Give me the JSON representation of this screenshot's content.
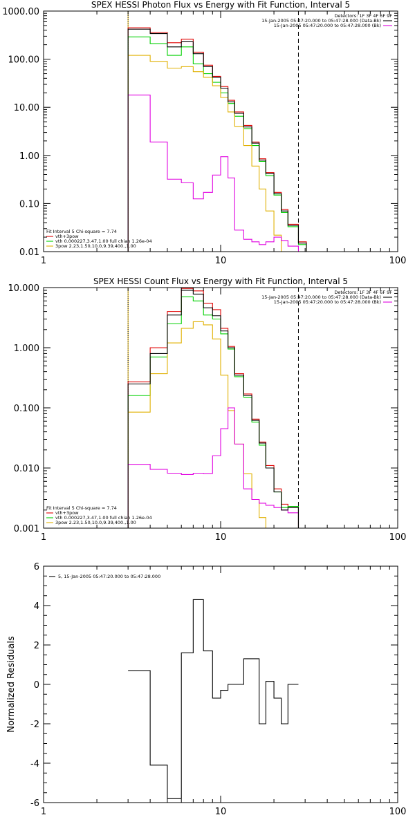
{
  "chart_data": [
    {
      "type": "line",
      "step": true,
      "title": "SPEX HESSI Photon Flux vs Energy with Fit Function, Interval 5",
      "x_scale": "log",
      "y_scale": "log",
      "xlim": [
        1,
        100
      ],
      "ylim": [
        0.01,
        1000
      ],
      "x_ticks": [
        1,
        10,
        100
      ],
      "x_tick_labels": [
        "1",
        "10",
        "100"
      ],
      "y_ticks": [
        0.01,
        0.1,
        1,
        10,
        100,
        1000
      ],
      "y_tick_labels": [
        "0.01",
        "0.10",
        "1.00",
        "10.00",
        "100.00",
        "1000.00"
      ],
      "vlines": [
        {
          "x": 3.0,
          "style": "dotted-orange"
        },
        {
          "x": 27.5,
          "style": "dashed"
        }
      ],
      "legend_top_right": [
        {
          "text": "Detectors: 1F 3F 4F 6F 9F",
          "color": "#000000",
          "line": false
        },
        {
          "text": "15-Jan-2005 05:47:20.000 to 05:47:28.000 (Data-Bk)",
          "color": "#000000",
          "line": true
        },
        {
          "text": "15-Jan-2005 05:47:20.000 to 05:47:28.000 (Bk)",
          "color": "#e000e0",
          "line": true
        }
      ],
      "legend_bottom_left": [
        {
          "text": "Fit Interval 5   Chi-square = 7.74",
          "color": "#000000",
          "line": false
        },
        {
          "text": "vth+3pow",
          "color": "#e00000",
          "line": true
        },
        {
          "text": "vth 0.000227,3.47,1.00   full chian 1.26e-04",
          "color": "#00d000",
          "line": true
        },
        {
          "text": "3pow 2.23,1.50,10.0,9.39,400.,1.00",
          "color": "#e0b000",
          "line": true
        }
      ],
      "bin_edges": [
        3.0,
        4.0,
        5.0,
        6.0,
        7.0,
        8.0,
        9.0,
        10.0,
        11.0,
        12.0,
        13.5,
        15.0,
        16.5,
        18.0,
        20.0,
        22.0,
        24.0,
        27.5,
        30.5
      ],
      "series": [
        {
          "name": "Data-Bk",
          "color": "#000000",
          "values": [
            420,
            340,
            180,
            230,
            130,
            70,
            42,
            25,
            13,
            7.5,
            3.9,
            1.8,
            0.8,
            0.42,
            0.16,
            0.07,
            0.035,
            0.015
          ]
        },
        {
          "name": "vth+3pow",
          "color": "#e00000",
          "values": [
            450,
            360,
            220,
            260,
            140,
            75,
            44,
            27,
            14,
            8,
            4.2,
            1.9,
            0.85,
            0.44,
            0.17,
            0.075,
            0.037,
            0.016
          ]
        },
        {
          "name": "vth",
          "color": "#00d000",
          "values": [
            290,
            210,
            120,
            180,
            80,
            50,
            33,
            20,
            12,
            6.5,
            3.6,
            1.6,
            0.75,
            0.38,
            0.15,
            0.065,
            0.033,
            0.014
          ]
        },
        {
          "name": "3pow",
          "color": "#e0b000",
          "values": [
            120,
            90,
            65,
            70,
            55,
            42,
            28,
            16,
            8,
            4,
            1.6,
            0.6,
            0.2,
            0.07,
            0.022,
            0.009,
            null,
            null
          ]
        },
        {
          "name": "Bk",
          "color": "#e000e0",
          "values": [
            18,
            1.9,
            0.32,
            0.27,
            0.125,
            0.17,
            0.39,
            0.94,
            0.34,
            0.028,
            0.018,
            0.016,
            0.014,
            0.016,
            0.02,
            0.017,
            0.013,
            null
          ]
        }
      ]
    },
    {
      "type": "line",
      "step": true,
      "title": "SPEX HESSI Count Flux vs Energy with Fit Function, Interval 5",
      "x_scale": "log",
      "y_scale": "log",
      "xlim": [
        1,
        100
      ],
      "ylim": [
        0.001,
        10
      ],
      "x_ticks": [
        1,
        10,
        100
      ],
      "x_tick_labels": [
        "1",
        "10",
        "100"
      ],
      "y_ticks": [
        0.001,
        0.01,
        0.1,
        1,
        10
      ],
      "y_tick_labels": [
        "0.001",
        "0.010",
        "0.100",
        "1.000",
        "10.000"
      ],
      "vlines": [
        {
          "x": 3.0,
          "style": "dotted-orange"
        },
        {
          "x": 27.5,
          "style": "dashed"
        }
      ],
      "legend_top_right": [
        {
          "text": "Detectors: 1F 3F 4F 6F 9F",
          "color": "#000000",
          "line": false
        },
        {
          "text": "15-Jan-2005 05:47:20.000 to 05:47:28.000 (Data-Bk)",
          "color": "#000000",
          "line": true
        },
        {
          "text": "15-Jan-2005 05:47:20.000 to 05:47:28.000 (Bk)",
          "color": "#e000e0",
          "line": true
        }
      ],
      "legend_bottom_left": [
        {
          "text": "Fit Interval 5   Chi-square = 7.74",
          "color": "#000000",
          "line": false
        },
        {
          "text": "vth+3pow",
          "color": "#e00000",
          "line": true
        },
        {
          "text": "vth 0.000227,3.47,1.00   full chian 1.26e-04",
          "color": "#00d000",
          "line": true
        },
        {
          "text": "3pow 2.23,1.50,10.0,9.39,400.,1.00",
          "color": "#e0b000",
          "line": true
        }
      ],
      "bin_edges": [
        3.0,
        4.0,
        5.0,
        6.0,
        7.0,
        8.0,
        9.0,
        10.0,
        11.0,
        12.0,
        13.5,
        15.0,
        16.5,
        18.0,
        20.0,
        22.0,
        24.0,
        27.5,
        30.5
      ],
      "series": [
        {
          "name": "Data-Bk",
          "color": "#000000",
          "values": [
            0.25,
            0.8,
            3.5,
            9.0,
            7.8,
            4.6,
            3.4,
            1.9,
            1.0,
            0.35,
            0.16,
            0.062,
            0.026,
            0.01,
            0.004,
            0.002,
            0.0022,
            null
          ]
        },
        {
          "name": "vth+3pow",
          "color": "#e00000",
          "values": [
            0.27,
            1.0,
            4.0,
            9.7,
            8.8,
            5.5,
            4.3,
            2.1,
            1.05,
            0.37,
            0.17,
            0.065,
            0.027,
            0.011,
            0.0045,
            0.0025,
            0.0023,
            null
          ]
        },
        {
          "name": "vth",
          "color": "#00d000",
          "values": [
            0.16,
            0.7,
            2.5,
            7.0,
            6.0,
            3.5,
            3.0,
            1.7,
            0.95,
            0.33,
            0.15,
            0.058,
            0.024,
            0.01,
            0.004,
            0.0022,
            0.0023,
            null
          ]
        },
        {
          "name": "3pow",
          "color": "#e0b000",
          "values": [
            0.085,
            0.37,
            1.2,
            2.1,
            2.7,
            2.4,
            1.4,
            0.35,
            0.09,
            0.025,
            0.008,
            0.003,
            0.0015,
            null,
            null,
            null,
            null,
            null
          ]
        },
        {
          "name": "Bk",
          "color": "#e000e0",
          "values": [
            0.0115,
            0.0095,
            0.0082,
            0.0078,
            0.0082,
            0.0081,
            0.016,
            0.045,
            0.1,
            0.025,
            0.0045,
            0.003,
            0.0026,
            0.0024,
            0.0022,
            0.002,
            0.0018,
            null
          ]
        }
      ]
    },
    {
      "type": "line",
      "step": true,
      "title": "",
      "x_scale": "log",
      "y_scale": "linear",
      "xlim": [
        1,
        100
      ],
      "ylim": [
        -6,
        6
      ],
      "ylabel": "Normalized Residuals",
      "x_ticks": [
        1,
        10,
        100
      ],
      "x_tick_labels": [
        "1",
        "10",
        "100"
      ],
      "y_ticks": [
        -6,
        -4,
        -2,
        0,
        2,
        4,
        6
      ],
      "y_tick_labels": [
        "-6",
        "-4",
        "-2",
        "0",
        "2",
        "4",
        "6"
      ],
      "legend_top_left": [
        {
          "text": "5, 15-Jan-2005 05:47:20.000 to 05:47:28.000",
          "color": "#000000",
          "line": true
        }
      ],
      "bin_edges": [
        3.0,
        4.0,
        5.0,
        6.0,
        7.0,
        8.0,
        9.0,
        10.0,
        11.0,
        12.0,
        13.5,
        15.0,
        16.5,
        18.0,
        20.0,
        22.0,
        24.0,
        27.5
      ],
      "series": [
        {
          "name": "",
          "color": "#000000",
          "values": [
            0.7,
            -4.1,
            -5.8,
            1.6,
            4.3,
            1.7,
            -0.7,
            -0.3,
            0.0,
            0.0,
            1.3,
            1.3,
            -2.0,
            0.15,
            -0.7,
            -2.0,
            0.0
          ]
        }
      ]
    }
  ]
}
